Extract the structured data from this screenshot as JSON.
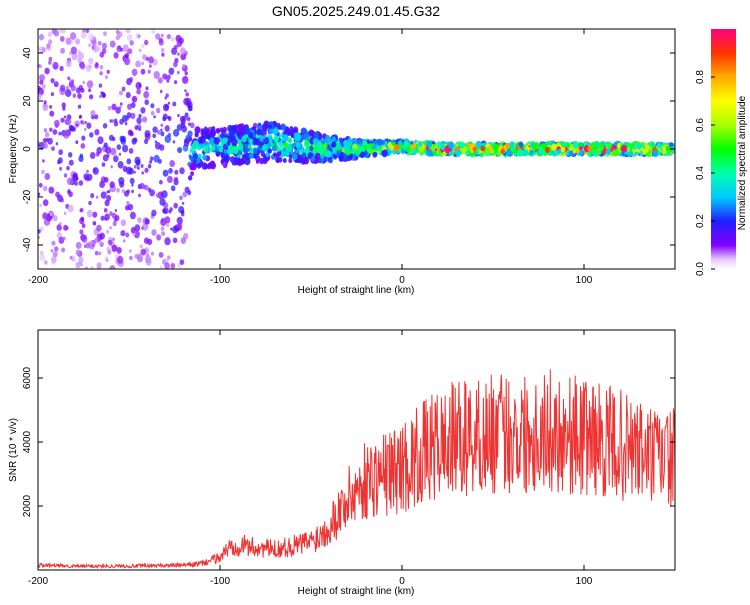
{
  "figure": {
    "title": "GN05.2025.249.01.45.G32"
  },
  "chart_data": [
    {
      "type": "heatmap",
      "title": "GN05.2025.249.01.45.G32",
      "xlabel": "Height of straight line (km)",
      "ylabel": "Frequency (Hz)",
      "xlim": [
        -200,
        150
      ],
      "ylim": [
        -50,
        50
      ],
      "xticks": [
        -200,
        -100,
        0,
        100
      ],
      "yticks": [
        -40,
        -20,
        0,
        20,
        40
      ],
      "colorbar": {
        "label": "Normalized spectral amplitude",
        "range": [
          0.0,
          1.0
        ],
        "ticks": [
          "0.0",
          "0.2",
          "0.4",
          "0.6",
          "0.8"
        ]
      },
      "description_points": [
        {
          "x": -200,
          "freq_center": 0,
          "amplitude": 0.15,
          "spread_hz": 50
        },
        {
          "x": -120,
          "freq_center": 0,
          "amplitude": 0.2,
          "spread_hz": 50
        },
        {
          "x": -115,
          "freq_center": 0,
          "amplitude": 0.35,
          "spread_hz": 8
        },
        {
          "x": -70,
          "freq_center": 3,
          "amplitude": 0.45,
          "spread_hz": 8
        },
        {
          "x": -40,
          "freq_center": 0,
          "amplitude": 0.5,
          "spread_hz": 5
        },
        {
          "x": -20,
          "freq_center": 0,
          "amplitude": 0.6,
          "spread_hz": 3
        },
        {
          "x": 0,
          "freq_center": 1,
          "amplitude": 0.8,
          "spread_hz": 2
        },
        {
          "x": 20,
          "freq_center": 0,
          "amplitude": 0.95,
          "spread_hz": 2
        },
        {
          "x": 150,
          "freq_center": 0,
          "amplitude": 0.95,
          "spread_hz": 2
        }
      ]
    },
    {
      "type": "line",
      "xlabel": "Height of straight line (km)",
      "ylabel": "SNR (10 * v/v)",
      "xlim": [
        -200,
        150
      ],
      "ylim": [
        0,
        7500
      ],
      "xticks": [
        -200,
        -100,
        0,
        100
      ],
      "yticks": [
        2000,
        4000,
        6000
      ],
      "series": [
        {
          "name": "SNR",
          "color": "#ee3333",
          "x": [
            -200,
            -180,
            -160,
            -140,
            -120,
            -110,
            -100,
            -95,
            -90,
            -85,
            -80,
            -70,
            -60,
            -50,
            -45,
            -40,
            -35,
            -30,
            -25,
            -20,
            -15,
            -10,
            -5,
            0,
            10,
            20,
            30,
            40,
            50,
            60,
            70,
            80,
            90,
            100,
            105,
            110,
            120,
            130,
            140,
            150
          ],
          "y": [
            150,
            120,
            120,
            130,
            150,
            200,
            400,
            700,
            800,
            750,
            700,
            650,
            750,
            900,
            1100,
            1400,
            1800,
            2200,
            2500,
            2800,
            2900,
            3000,
            3100,
            3200,
            3600,
            3900,
            4100,
            4150,
            4250,
            4300,
            4300,
            4350,
            4300,
            4150,
            4200,
            4000,
            3900,
            3700,
            3500,
            3500
          ]
        }
      ]
    }
  ]
}
